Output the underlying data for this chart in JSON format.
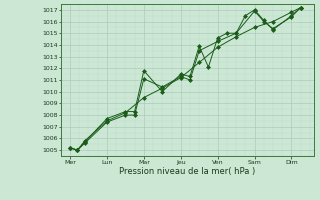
{
  "title": "",
  "xlabel": "Pression niveau de la mer( hPa )",
  "ylim": [
    1004.5,
    1017.5
  ],
  "yticks": [
    1005,
    1006,
    1007,
    1008,
    1009,
    1010,
    1011,
    1012,
    1013,
    1014,
    1015,
    1016,
    1017
  ],
  "day_labels": [
    "Mer",
    "Lun",
    "Mar",
    "Jeu",
    "Ven",
    "Sam",
    "Dim"
  ],
  "day_positions": [
    0,
    2,
    4,
    6,
    8,
    10,
    12
  ],
  "bg_color": "#cce8d4",
  "grid_color_major": "#aacabc",
  "grid_color_minor": "#bcd8cc",
  "line_color1": "#1a5c1a",
  "line_color2": "#1a5c1a",
  "line_color3": "#1a5c1a",
  "line1_x": [
    0,
    0.4,
    0.8,
    2.0,
    3.0,
    3.5,
    4.0,
    5.0,
    6.0,
    6.5,
    7.0,
    7.5,
    8.0,
    8.5,
    9.0,
    9.5,
    10.0,
    10.5,
    11.0,
    12.0,
    12.5
  ],
  "line1_y": [
    1005.2,
    1005.0,
    1005.7,
    1007.7,
    1008.3,
    1008.3,
    1011.8,
    1010.0,
    1011.5,
    1011.3,
    1013.9,
    1012.1,
    1014.6,
    1015.0,
    1015.0,
    1016.5,
    1017.0,
    1016.1,
    1015.3,
    1016.5,
    1017.2
  ],
  "line2_x": [
    0,
    0.4,
    0.8,
    2.0,
    3.0,
    4.0,
    5.0,
    6.0,
    7.0,
    8.0,
    9.0,
    10.0,
    11.0,
    12.0,
    12.5
  ],
  "line2_y": [
    1005.2,
    1005.0,
    1005.8,
    1007.5,
    1008.2,
    1009.5,
    1010.3,
    1011.2,
    1012.5,
    1013.8,
    1014.7,
    1015.5,
    1016.0,
    1016.8,
    1017.2
  ],
  "line3_x": [
    0,
    0.4,
    0.8,
    2.0,
    3.0,
    3.5,
    4.0,
    5.0,
    6.0,
    6.5,
    7.0,
    8.0,
    9.0,
    10.0,
    10.5,
    11.0,
    12.0,
    12.5
  ],
  "line3_y": [
    1005.2,
    1005.0,
    1005.6,
    1007.4,
    1008.0,
    1008.0,
    1011.1,
    1010.4,
    1011.3,
    1011.0,
    1013.5,
    1014.3,
    1015.0,
    1016.9,
    1016.0,
    1015.4,
    1016.4,
    1017.2
  ],
  "tick_label_size": 4.5,
  "xlabel_size": 6.0,
  "xlim": [
    -0.5,
    13.2
  ]
}
